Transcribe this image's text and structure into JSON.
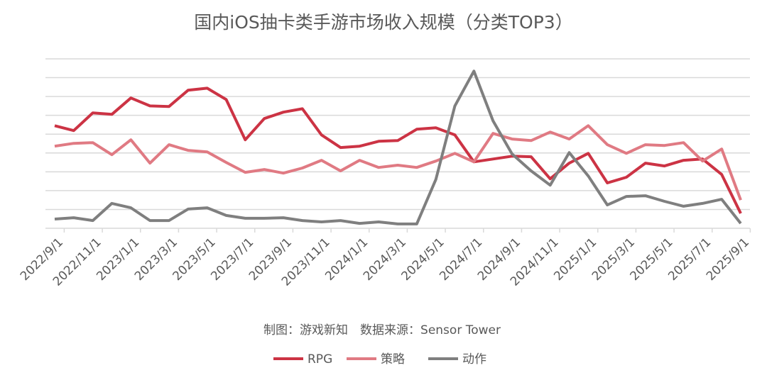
{
  "chart_data": {
    "type": "line",
    "title": "国内iOS抽卡类手游市场收入规模（分类TOP3）",
    "source": "制图：游戏新知　数据来源：Sensor Tower",
    "xlabel": "",
    "ylabel": "",
    "y_axis_labels_shown": false,
    "ylim": [
      0,
      9
    ],
    "grid": true,
    "legend_position": "bottom",
    "x": [
      "2022/9/1",
      "2022/10/1",
      "2022/11/1",
      "2022/12/1",
      "2023/1/1",
      "2023/2/1",
      "2023/3/1",
      "2023/4/1",
      "2023/5/1",
      "2023/6/1",
      "2023/7/1",
      "2023/8/1",
      "2023/9/1",
      "2023/10/1",
      "2023/11/1",
      "2023/12/1",
      "2024/1/1",
      "2024/2/1",
      "2024/3/1",
      "2024/4/1",
      "2024/5/1",
      "2024/6/1",
      "2024/7/1",
      "2024/8/1",
      "2024/9/1",
      "2024/10/1",
      "2024/11/1",
      "2024/12/1",
      "2025/1/1",
      "2025/2/1",
      "2025/3/1",
      "2025/4/1",
      "2025/5/1",
      "2025/6/1",
      "2025/7/1",
      "2025/8/1",
      "2025/9/1"
    ],
    "tick_labels": [
      "2022/9/1",
      "2022/11/1",
      "2023/1/1",
      "2023/3/1",
      "2023/5/1",
      "2023/7/1",
      "2023/9/1",
      "2023/11/1",
      "2024/1/1",
      "2024/3/1",
      "2024/5/1",
      "2024/7/1",
      "2024/9/1",
      "2024/11/1",
      "2025/1/1",
      "2025/3/1",
      "2025/5/1",
      "2025/7/1",
      "2025/9/1"
    ],
    "series": [
      {
        "name": "RPG",
        "color": "#cc3344",
        "values": [
          5.45,
          5.19,
          6.13,
          6.05,
          6.92,
          6.5,
          6.47,
          7.33,
          7.44,
          6.84,
          4.7,
          5.83,
          6.17,
          6.35,
          4.96,
          4.29,
          4.36,
          4.62,
          4.66,
          5.26,
          5.34,
          4.96,
          3.53,
          3.68,
          3.83,
          3.8,
          2.63,
          3.46,
          3.98,
          2.41,
          2.71,
          3.46,
          3.31,
          3.61,
          3.68,
          2.86,
          0.79
        ]
      },
      {
        "name": "策略",
        "color": "#e07a83",
        "values": [
          4.36,
          4.51,
          4.55,
          3.91,
          4.7,
          3.46,
          4.44,
          4.14,
          4.06,
          3.5,
          2.97,
          3.12,
          2.93,
          3.2,
          3.61,
          3.05,
          3.61,
          3.23,
          3.35,
          3.23,
          3.57,
          3.98,
          3.53,
          5.04,
          4.74,
          4.66,
          5.11,
          4.74,
          5.45,
          4.44,
          3.98,
          4.44,
          4.4,
          4.55,
          3.57,
          4.21,
          1.5
        ]
      },
      {
        "name": "动作",
        "color": "#7f7f7f",
        "values": [
          0.49,
          0.56,
          0.41,
          1.32,
          1.09,
          0.41,
          0.41,
          1.02,
          1.09,
          0.68,
          0.53,
          0.53,
          0.56,
          0.41,
          0.34,
          0.41,
          0.26,
          0.34,
          0.23,
          0.23,
          2.59,
          6.5,
          8.35,
          5.71,
          3.95,
          3.05,
          2.29,
          4.02,
          2.78,
          1.24,
          1.69,
          1.73,
          1.43,
          1.17,
          1.32,
          1.54,
          0.26
        ]
      }
    ]
  }
}
